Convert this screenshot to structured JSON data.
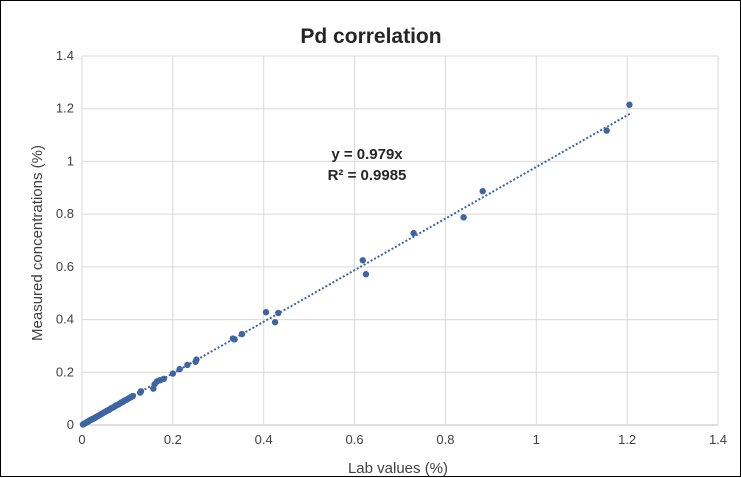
{
  "chart_data": {
    "type": "scatter",
    "title": "Pd correlation",
    "xlabel": "Lab values (%)",
    "ylabel": "Measured concentrations  (%)",
    "xlim": [
      0,
      1.4
    ],
    "ylim": [
      0,
      1.4
    ],
    "xticks": [
      "0",
      "0.2",
      "0.4",
      "0.6",
      "0.8",
      "1",
      "1.2",
      "1.4"
    ],
    "yticks": [
      "0",
      "0.2",
      "0.4",
      "0.6",
      "0.8",
      "1",
      "1.2",
      "1.4"
    ],
    "grid": true,
    "legend": "none",
    "colors": {
      "points": "#3d64a3",
      "trendline": "#3d64a3",
      "grid": "#d9d9d9",
      "frame": "#000000"
    },
    "trendline": {
      "type": "linear-through-origin",
      "slope": 0.979,
      "equation": "y = 0.979x",
      "r_squared": "R² = 0.9985",
      "x_range": [
        0,
        1.21
      ]
    },
    "points": [
      [
        0.002,
        0.002
      ],
      [
        0.004,
        0.004
      ],
      [
        0.006,
        0.006
      ],
      [
        0.008,
        0.008
      ],
      [
        0.01,
        0.01
      ],
      [
        0.012,
        0.012
      ],
      [
        0.014,
        0.014
      ],
      [
        0.016,
        0.016
      ],
      [
        0.018,
        0.018
      ],
      [
        0.02,
        0.02
      ],
      [
        0.022,
        0.022
      ],
      [
        0.025,
        0.024
      ],
      [
        0.028,
        0.027
      ],
      [
        0.03,
        0.029
      ],
      [
        0.033,
        0.032
      ],
      [
        0.036,
        0.035
      ],
      [
        0.04,
        0.039
      ],
      [
        0.043,
        0.042
      ],
      [
        0.046,
        0.045
      ],
      [
        0.05,
        0.049
      ],
      [
        0.053,
        0.052
      ],
      [
        0.056,
        0.055
      ],
      [
        0.06,
        0.058
      ],
      [
        0.063,
        0.062
      ],
      [
        0.066,
        0.065
      ],
      [
        0.07,
        0.068
      ],
      [
        0.073,
        0.072
      ],
      [
        0.076,
        0.075
      ],
      [
        0.08,
        0.078
      ],
      [
        0.083,
        0.081
      ],
      [
        0.086,
        0.085
      ],
      [
        0.09,
        0.088
      ],
      [
        0.093,
        0.092
      ],
      [
        0.097,
        0.095
      ],
      [
        0.1,
        0.098
      ],
      [
        0.104,
        0.102
      ],
      [
        0.108,
        0.106
      ],
      [
        0.112,
        0.11
      ],
      [
        0.128,
        0.123
      ],
      [
        0.13,
        0.128
      ],
      [
        0.157,
        0.138
      ],
      [
        0.16,
        0.155
      ],
      [
        0.165,
        0.165
      ],
      [
        0.172,
        0.17
      ],
      [
        0.18,
        0.175
      ],
      [
        0.2,
        0.195
      ],
      [
        0.215,
        0.212
      ],
      [
        0.232,
        0.228
      ],
      [
        0.25,
        0.24
      ],
      [
        0.252,
        0.248
      ],
      [
        0.332,
        0.328
      ],
      [
        0.336,
        0.325
      ],
      [
        0.352,
        0.345
      ],
      [
        0.405,
        0.428
      ],
      [
        0.425,
        0.39
      ],
      [
        0.432,
        0.425
      ],
      [
        0.618,
        0.625
      ],
      [
        0.625,
        0.572
      ],
      [
        0.73,
        0.728
      ],
      [
        0.84,
        0.788
      ],
      [
        0.882,
        0.887
      ],
      [
        1.155,
        1.117
      ],
      [
        1.205,
        1.215
      ]
    ]
  }
}
